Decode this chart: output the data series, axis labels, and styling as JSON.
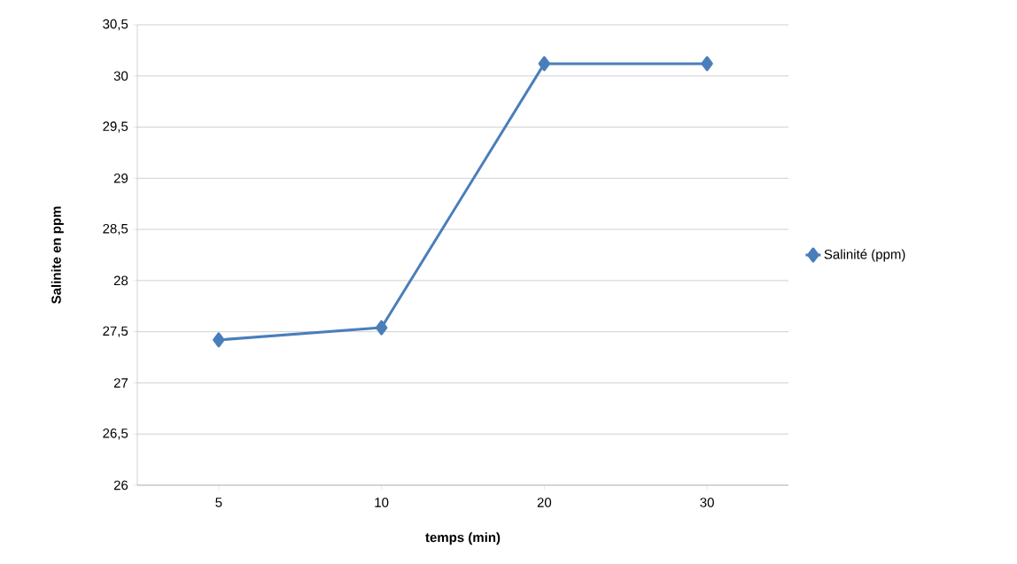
{
  "chart_data": {
    "type": "line",
    "xlabel": "temps (min)",
    "ylabel": "Salinite en ppm",
    "categories": [
      "5",
      "10",
      "20",
      "30"
    ],
    "series": [
      {
        "name": "Salinité (ppm)",
        "color": "#4a7ebb",
        "values": [
          27.42,
          27.54,
          30.12,
          30.12
        ]
      }
    ],
    "ylim": [
      26,
      30.5
    ],
    "yticks": [
      26,
      {
        "value": 26.5,
        "label": "26,5"
      },
      27,
      {
        "value": 27.5,
        "label": "27,5"
      },
      28,
      {
        "value": 28.5,
        "label": "28,5"
      },
      29,
      {
        "value": 29.5,
        "label": "29,5"
      },
      30,
      {
        "value": 30.5,
        "label": "30,5"
      }
    ],
    "grid": "y",
    "legend": "right",
    "marker": "diamond",
    "line_style": "solid"
  }
}
